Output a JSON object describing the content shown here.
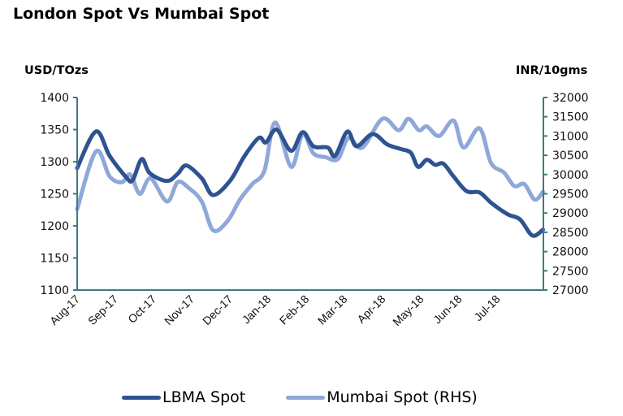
{
  "chart_data": {
    "type": "line",
    "title": "London Spot Vs Mumbai Spot",
    "xlabel": "",
    "ylabel_left": "USD/TOzs",
    "ylabel_right": "INR/10gms",
    "x_tick_labels": [
      "Aug-17",
      "Sep-17",
      "Oct-17",
      "Nov-17",
      "Dec-17",
      "Jan-18",
      "Feb-18",
      "Mar-18",
      "Apr-18",
      "May-18",
      "Jun-18",
      "Jul-18"
    ],
    "x_range": [
      0,
      12.2
    ],
    "ylim_left": [
      1100,
      1400
    ],
    "yticks_left": [
      1100,
      1150,
      1200,
      1250,
      1300,
      1350,
      1400
    ],
    "ylim_right": [
      27000,
      32000
    ],
    "yticks_right": [
      27000,
      27500,
      28000,
      28500,
      29000,
      29500,
      30000,
      30500,
      31000,
      31500,
      32000
    ],
    "grid": false,
    "legend_position": "bottom",
    "series": [
      {
        "name": "LBMA Spot",
        "axis": "left",
        "color": "#2F5391",
        "x": [
          0,
          0.49,
          0.85,
          1.28,
          1.45,
          1.69,
          1.9,
          2.35,
          2.63,
          2.86,
          3.26,
          3.56,
          4.01,
          4.37,
          4.75,
          4.94,
          5.22,
          5.6,
          5.9,
          6.18,
          6.56,
          6.75,
          7.07,
          7.31,
          7.73,
          8.11,
          8.45,
          8.73,
          8.92,
          9.15,
          9.37,
          9.58,
          9.85,
          10.19,
          10.53,
          10.85,
          11.27,
          11.59,
          11.91,
          12.19
        ],
        "values": [
          1290,
          1347,
          1309,
          1276,
          1271,
          1304,
          1282,
          1270,
          1281,
          1294,
          1274,
          1248,
          1271,
          1308,
          1337,
          1330,
          1350,
          1317,
          1346,
          1324,
          1322,
          1309,
          1347,
          1324,
          1343,
          1327,
          1320,
          1314,
          1292,
          1303,
          1295,
          1297,
          1277,
          1254,
          1252,
          1235,
          1218,
          1210,
          1185,
          1194
        ]
      },
      {
        "name": "Mumbai Spot (RHS)",
        "axis": "right",
        "color": "#8FA8D8",
        "x": [
          0,
          0.49,
          0.85,
          1.17,
          1.39,
          1.64,
          1.92,
          2.35,
          2.63,
          2.92,
          3.26,
          3.56,
          3.94,
          4.26,
          4.58,
          4.9,
          5.18,
          5.6,
          5.9,
          6.18,
          6.5,
          6.82,
          7.1,
          7.46,
          7.99,
          8.41,
          8.67,
          8.94,
          9.15,
          9.47,
          9.85,
          10.11,
          10.53,
          10.83,
          11.17,
          11.44,
          11.7,
          11.97,
          12.19
        ],
        "values": [
          29100,
          30600,
          29950,
          29800,
          30000,
          29500,
          29900,
          29300,
          29800,
          29650,
          29300,
          28550,
          28800,
          29350,
          29750,
          30100,
          31350,
          30200,
          31050,
          30550,
          30450,
          30400,
          30950,
          30700,
          31450,
          31150,
          31450,
          31150,
          31250,
          31000,
          31400,
          30700,
          31200,
          30300,
          30050,
          29700,
          29750,
          29350,
          29550
        ]
      }
    ]
  }
}
